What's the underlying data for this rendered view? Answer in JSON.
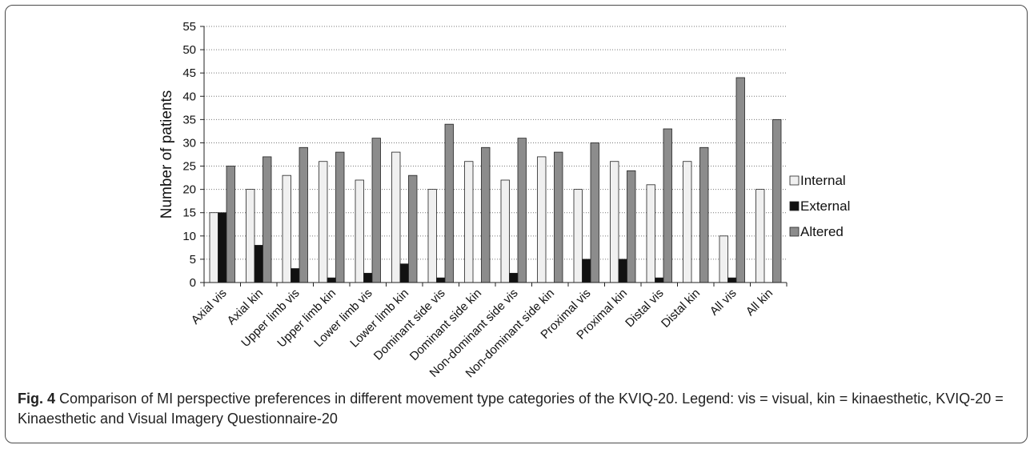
{
  "caption": {
    "label": "Fig. 4",
    "text": "Comparison of MI perspective preferences in different movement type categories of the KVIQ-20. Legend: vis = visual, kin = kinaesthetic, KVIQ-20 = Kinaesthetic and Visual Imagery Questionnaire-20"
  },
  "chart_data": {
    "type": "bar",
    "title": "",
    "xlabel": "",
    "ylabel": "Number of patients",
    "ylim": [
      0,
      55
    ],
    "ytick_step": 5,
    "grid": "horizontal-dotted",
    "legend_position": "right",
    "categories": [
      "Axial vis",
      "Axial kin",
      "Upper limb vis",
      "Upper limb kin",
      "Lower limb vis",
      "Lower limb kin",
      "Dominant side vis",
      "Dominant side kin",
      "Non-dominant side vis",
      "Non-dominant side kin",
      "Proximal vis",
      "Proximal kin",
      "Distal vis",
      "Distal kin",
      "All vis",
      "All kin"
    ],
    "series": [
      {
        "name": "Internal",
        "color": "#f0f0f0",
        "values": [
          15,
          20,
          23,
          26,
          22,
          28,
          20,
          26,
          22,
          27,
          20,
          26,
          21,
          26,
          10,
          20
        ]
      },
      {
        "name": "External",
        "color": "#111111",
        "values": [
          15,
          8,
          3,
          1,
          2,
          4,
          1,
          0,
          2,
          0,
          5,
          5,
          1,
          0,
          1,
          0
        ]
      },
      {
        "name": "Altered",
        "color": "#8c8c8c",
        "values": [
          25,
          27,
          29,
          28,
          31,
          23,
          34,
          29,
          31,
          28,
          30,
          24,
          33,
          29,
          44,
          35
        ]
      }
    ]
  }
}
